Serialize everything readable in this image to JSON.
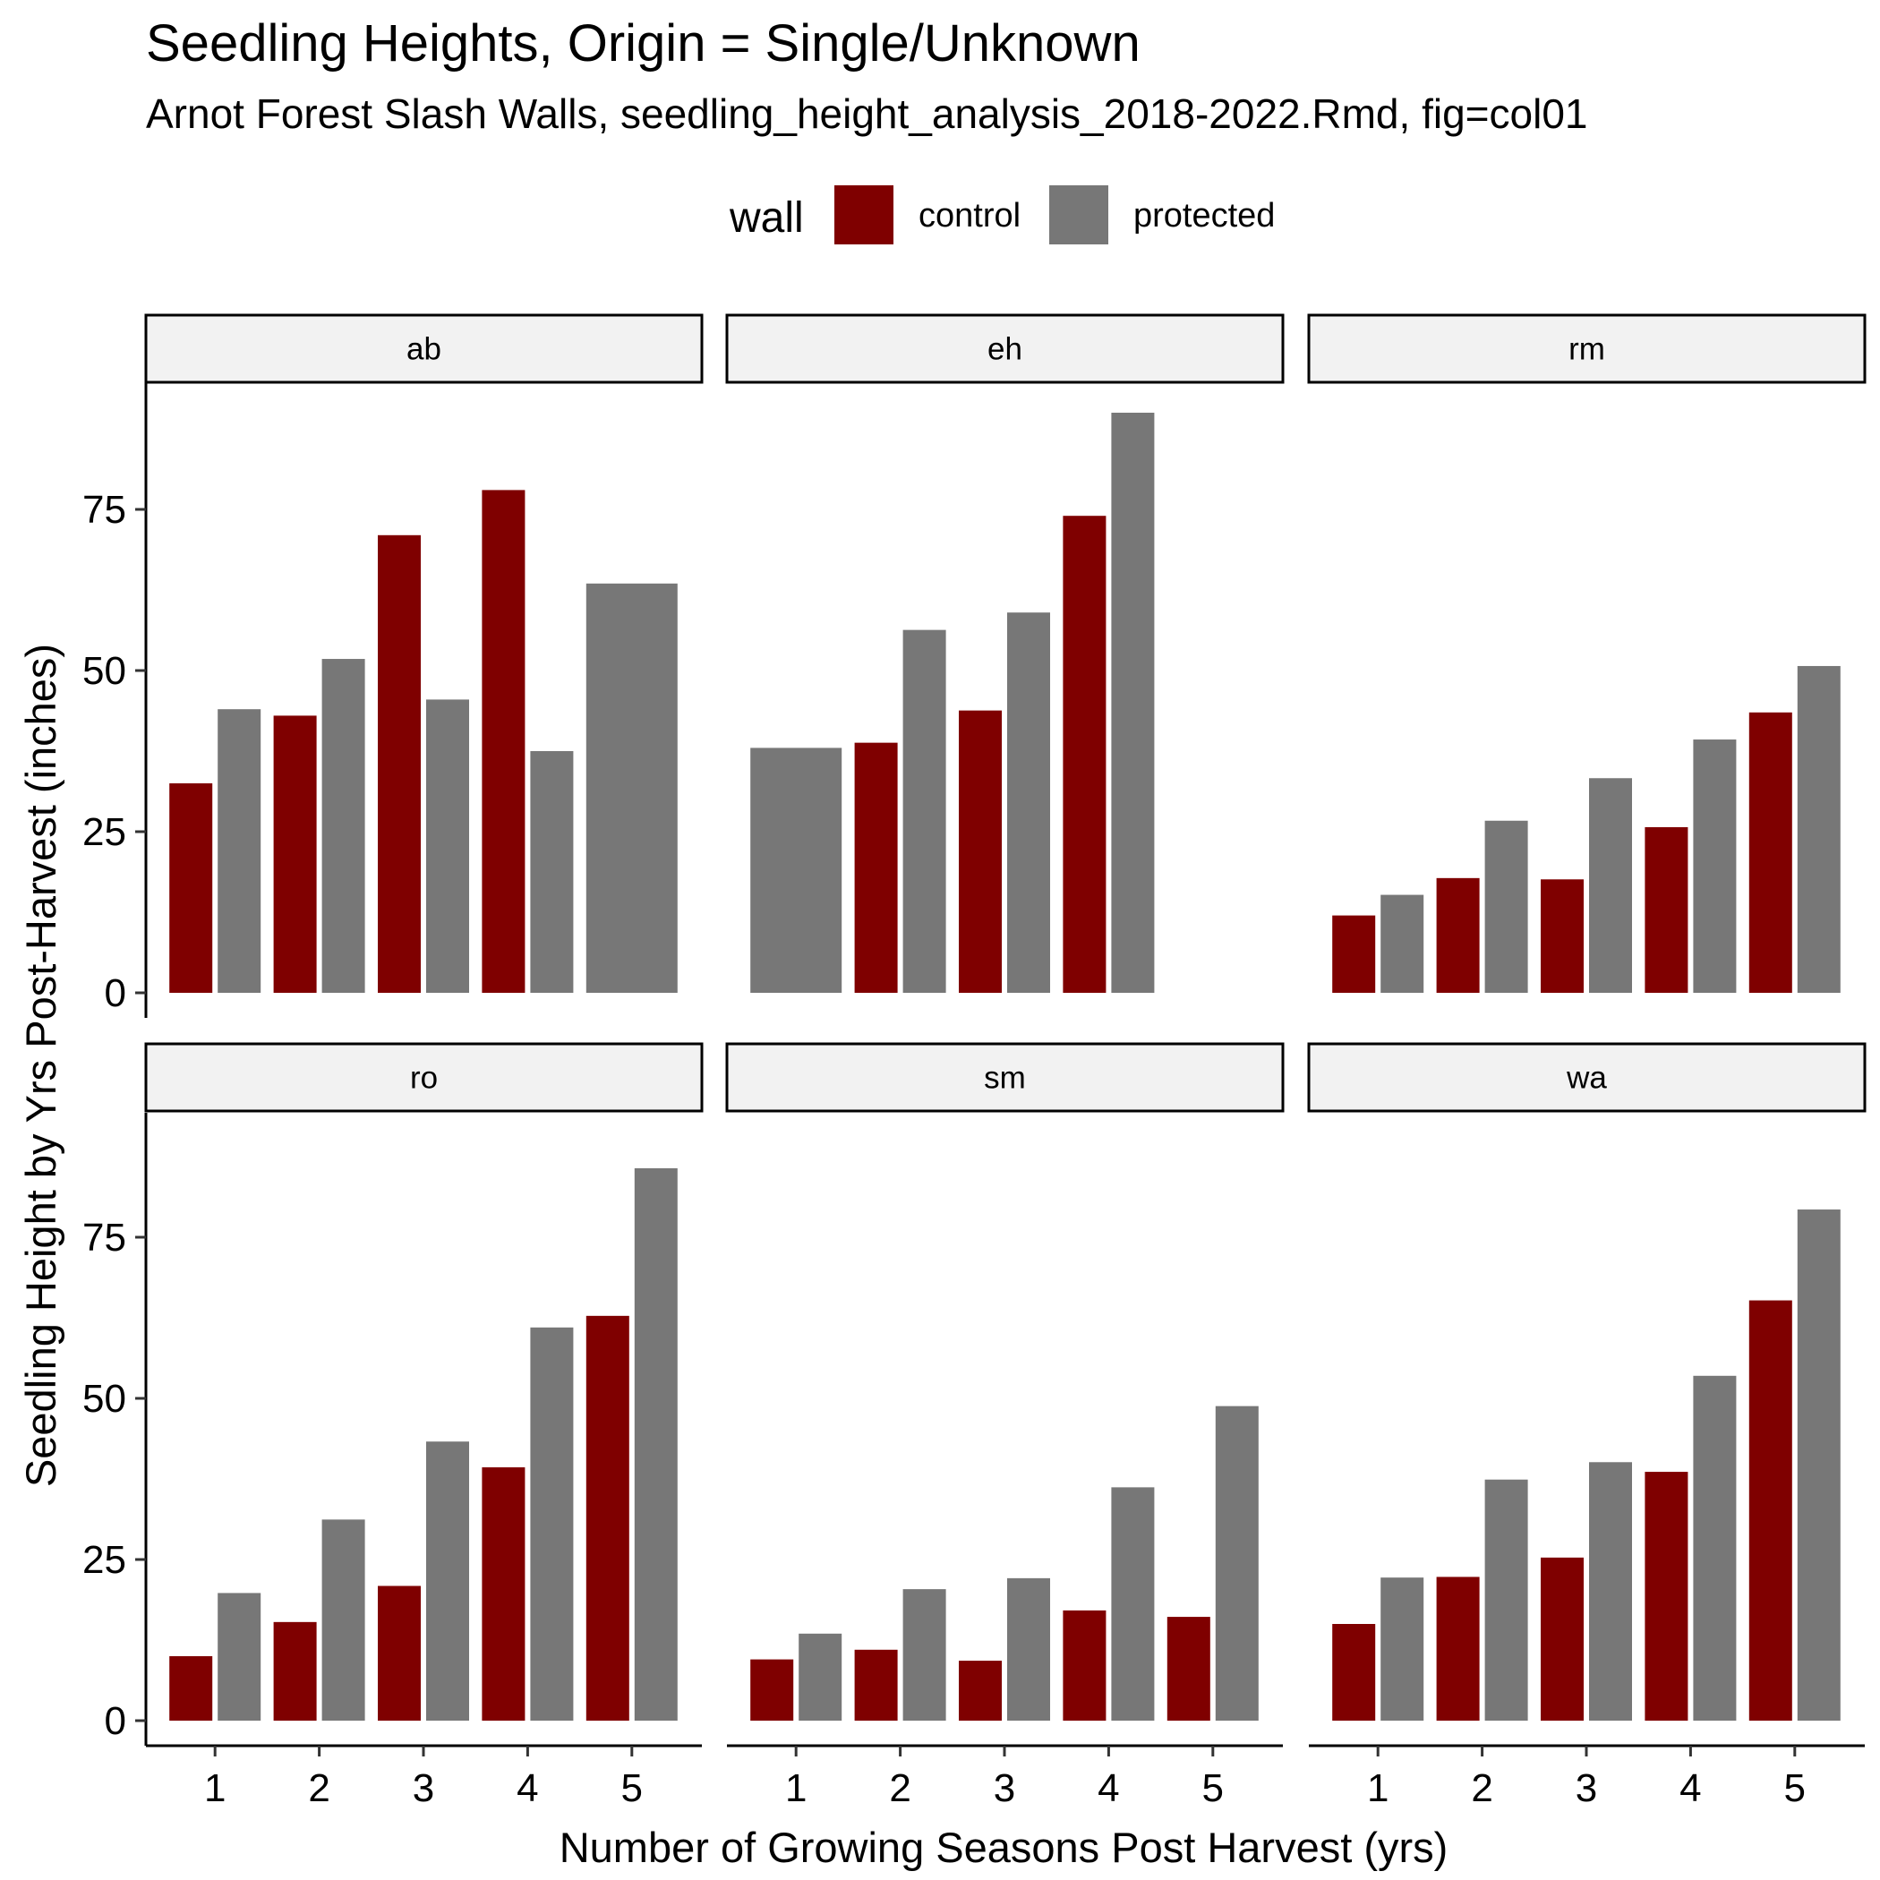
{
  "chart_data": {
    "type": "bar",
    "title": "Seedling Heights, Origin = Single/Unknown",
    "subtitle": "Arnot Forest Slash Walls, seedling_height_analysis_2018-2022.Rmd, fig=col01",
    "xlabel": "Number of Growing Seasons Post Harvest (yrs)",
    "ylabel": "Seedling Height by Yrs Post-Harvest (inches)",
    "categories": [
      "1",
      "2",
      "3",
      "4",
      "5"
    ],
    "ylim": [
      0,
      93
    ],
    "yticks": [
      "0",
      "25",
      "50",
      "75"
    ],
    "grid": false,
    "legend": {
      "title": "wall",
      "position": "top",
      "entries": [
        {
          "name": "control",
          "color": "#7f0000"
        },
        {
          "name": "protected",
          "color": "#777777"
        }
      ]
    },
    "facets": [
      {
        "label": "ab",
        "series": [
          {
            "name": "control",
            "values": [
              32.5,
              43,
              71,
              78,
              null
            ]
          },
          {
            "name": "protected",
            "values": [
              44,
              51.8,
              45.5,
              37.5,
              63.5
            ]
          }
        ]
      },
      {
        "label": "eh",
        "series": [
          {
            "name": "control",
            "values": [
              null,
              38.8,
              43.8,
              74,
              null
            ]
          },
          {
            "name": "protected",
            "values": [
              38,
              56.3,
              59,
              90,
              null
            ]
          }
        ]
      },
      {
        "label": "rm",
        "series": [
          {
            "name": "control",
            "values": [
              12,
              17.8,
              17.6,
              25.7,
              43.5
            ]
          },
          {
            "name": "protected",
            "values": [
              15.2,
              26.7,
              33.3,
              39.3,
              50.7
            ]
          }
        ]
      },
      {
        "label": "ro",
        "series": [
          {
            "name": "control",
            "values": [
              10,
              15.3,
              20.9,
              39.3,
              62.8
            ]
          },
          {
            "name": "protected",
            "values": [
              19.8,
              31.2,
              43.3,
              61,
              85.7
            ]
          }
        ]
      },
      {
        "label": "sm",
        "series": [
          {
            "name": "control",
            "values": [
              9.5,
              11,
              9.3,
              17.1,
              16.1
            ]
          },
          {
            "name": "protected",
            "values": [
              13.5,
              20.4,
              22.1,
              36.2,
              48.8
            ]
          }
        ]
      },
      {
        "label": "wa",
        "series": [
          {
            "name": "control",
            "values": [
              15,
              22.3,
              25.3,
              38.6,
              65.2
            ]
          },
          {
            "name": "protected",
            "values": [
              22.2,
              37.4,
              40.1,
              53.5,
              79.3
            ]
          }
        ]
      }
    ]
  }
}
